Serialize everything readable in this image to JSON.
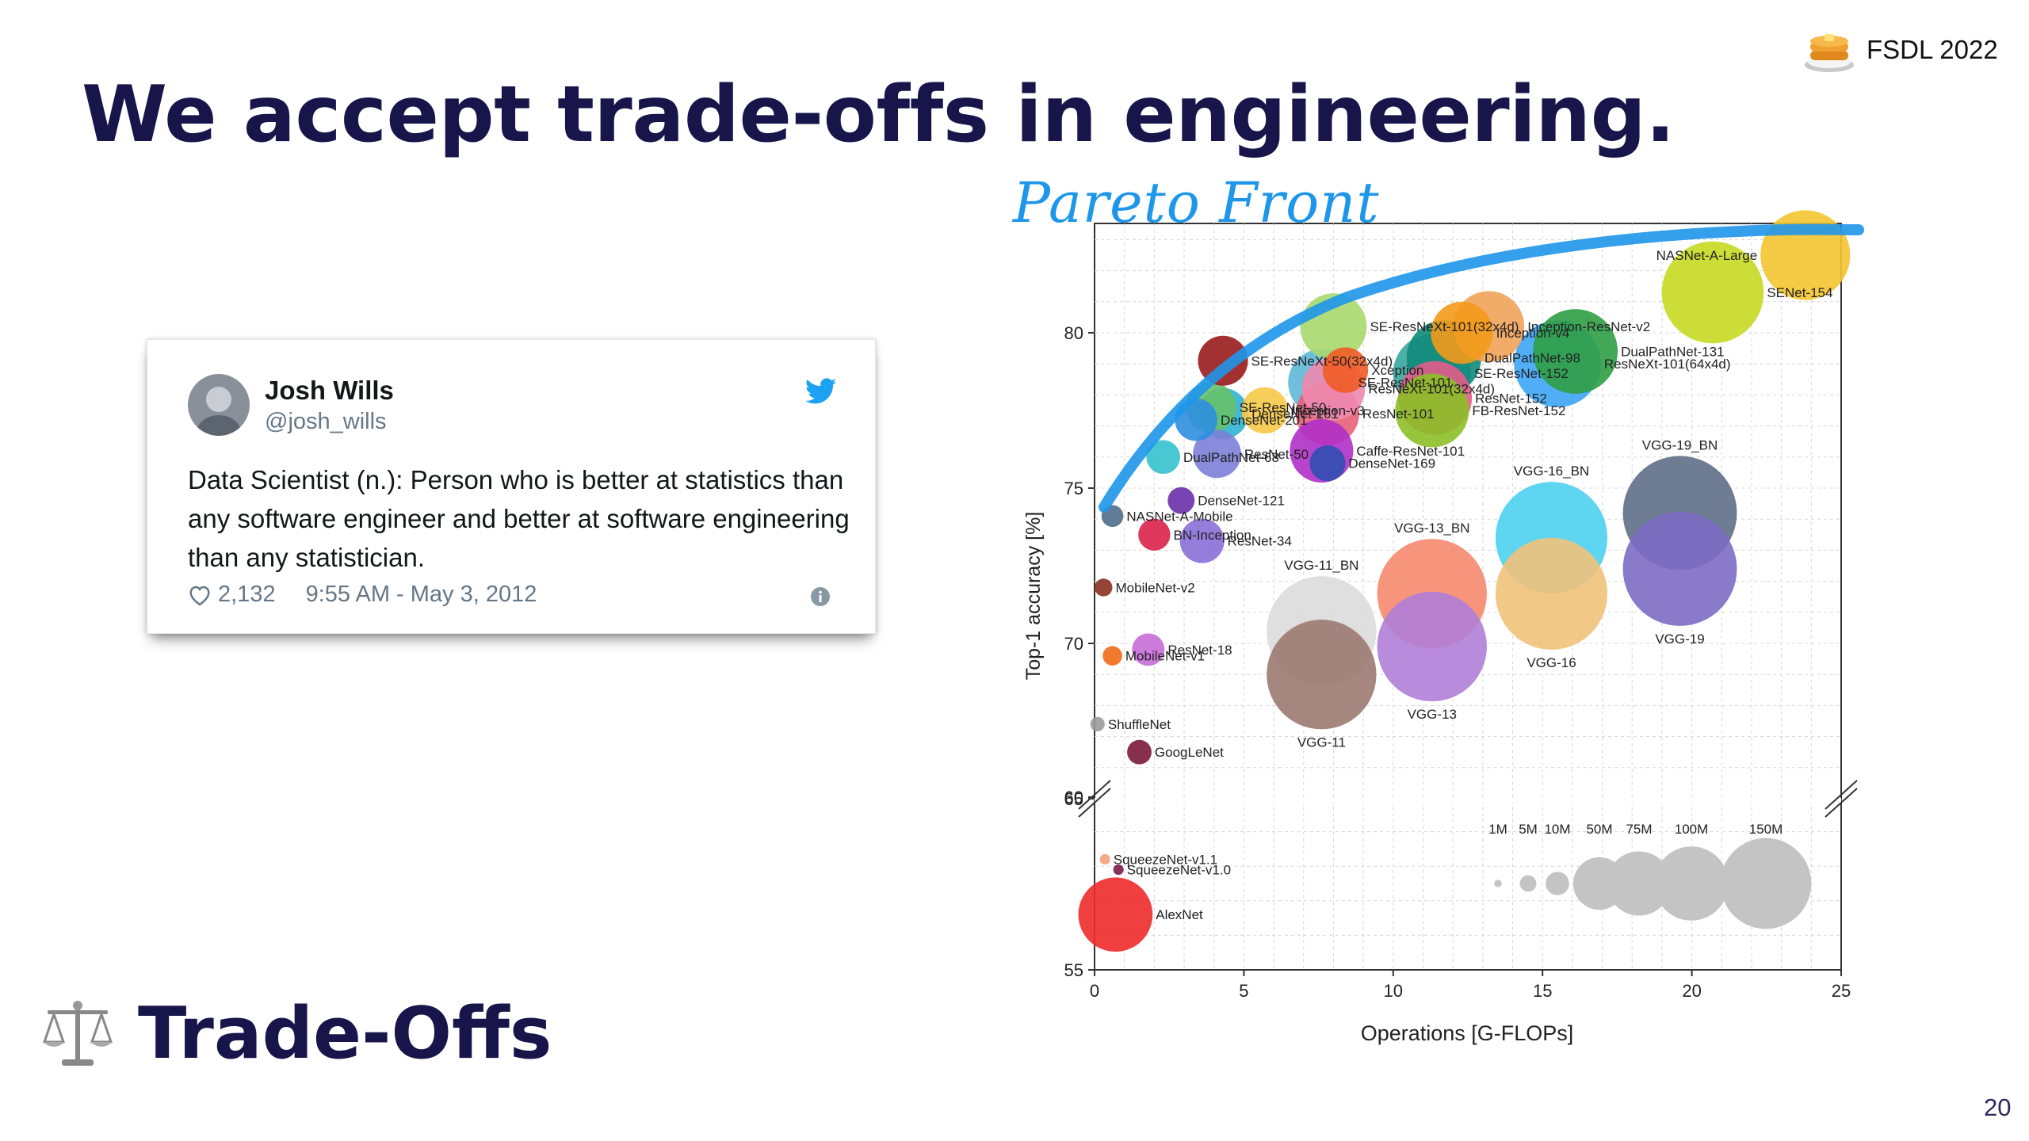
{
  "slide": {
    "title": "We accept trade-offs in engineering.",
    "brand": "FSDL 2022",
    "annotation": "Pareto Front",
    "footer": "Trade-Offs",
    "page_number": "20"
  },
  "tweet": {
    "name": "Josh Wills",
    "handle": "@josh_wills",
    "text": "Data Scientist (n.): Person who is better at statistics than any software engineer and better at software engineering than any statistician.",
    "likes": "2,132",
    "timestamp": "9:55 AM - May 3, 2012"
  },
  "colors": {
    "title": "#17154a",
    "pareto": "#1e96ea",
    "twitter": "#1da1f2"
  },
  "chart_data": {
    "type": "scatter",
    "xlabel": "Operations [G-FLOPs]",
    "ylabel": "Top-1 accuracy [%]",
    "xlim": [
      0,
      25
    ],
    "ylim": [
      55,
      83
    ],
    "x_ticks": [
      "0",
      "5",
      "10",
      "15",
      "20",
      "25"
    ],
    "y_ticks_upper": [
      "65",
      "70",
      "75",
      "80"
    ],
    "y_ticks_lower": [
      "55",
      "60"
    ],
    "axis_break": [
      60,
      65
    ],
    "grid": true,
    "size_legend": {
      "labels": [
        "1M",
        "5M",
        "10M",
        "50M",
        "75M",
        "100M",
        "150M"
      ],
      "params_m": [
        1,
        5,
        10,
        50,
        75,
        100,
        150
      ]
    },
    "points": [
      {
        "name": "NASNet-A-Large",
        "x": 23.8,
        "y": 82.5,
        "params_m": 88.9,
        "color": "#f4c430"
      },
      {
        "name": "SENet-154",
        "x": 20.7,
        "y": 81.3,
        "params_m": 115,
        "color": "#c7d922"
      },
      {
        "name": "Inception-ResNet-v2",
        "x": 13.2,
        "y": 80.2,
        "params_m": 55.8,
        "color": "#f1a35a"
      },
      {
        "name": "Inception-v4",
        "x": 12.3,
        "y": 80.0,
        "params_m": 42.7,
        "color": "#f39a1a"
      },
      {
        "name": "DualPathNet-131",
        "x": 16.1,
        "y": 79.4,
        "params_m": 79.3,
        "color": "#2f9e44"
      },
      {
        "name": "DualPathNet-98",
        "x": 11.7,
        "y": 79.2,
        "params_m": 61.6,
        "color": "#108a7a"
      },
      {
        "name": "SE-ResNeXt-101(32x4d)",
        "x": 8.0,
        "y": 80.2,
        "params_m": 49,
        "color": "#a9d86e"
      },
      {
        "name": "SE-ResNeXt-50(32x4d)",
        "x": 4.3,
        "y": 79.1,
        "params_m": 27.6,
        "color": "#9a1b1b"
      },
      {
        "name": "Xception",
        "x": 8.4,
        "y": 78.8,
        "params_m": 22.9,
        "color": "#ef5b25"
      },
      {
        "name": "SE-ResNet-152",
        "x": 11.3,
        "y": 78.7,
        "params_m": 66.8,
        "color": "#3aa6a0"
      },
      {
        "name": "ResNeXt-101(64x4d)",
        "x": 15.5,
        "y": 79.0,
        "params_m": 83.5,
        "color": "#3da5f5"
      },
      {
        "name": "SE-ResNet-101",
        "x": 7.6,
        "y": 78.4,
        "params_m": 49.3,
        "color": "#5fb8d8"
      },
      {
        "name": "ResNeXt-101(32x4d)",
        "x": 8.0,
        "y": 78.2,
        "params_m": 44.2,
        "color": "#ef8ab0"
      },
      {
        "name": "ResNet-152",
        "x": 11.4,
        "y": 77.9,
        "params_m": 60.2,
        "color": "#e35c8a"
      },
      {
        "name": "Inception-v3",
        "x": 5.7,
        "y": 77.5,
        "params_m": 23.8,
        "color": "#f7c948"
      },
      {
        "name": "SE-ResNet-50",
        "x": 3.9,
        "y": 77.6,
        "params_m": 28.1,
        "color": "#66c26a"
      },
      {
        "name": "ResNet-101",
        "x": 7.8,
        "y": 77.4,
        "params_m": 44.5,
        "color": "#e6607a"
      },
      {
        "name": "FB-ResNet-152",
        "x": 11.3,
        "y": 77.5,
        "params_m": 60.2,
        "color": "#8cbf26"
      },
      {
        "name": "DenseNet-201",
        "x": 3.4,
        "y": 77.2,
        "params_m": 20,
        "color": "#2f8fe0"
      },
      {
        "name": "DenseNet-161",
        "x": 4.3,
        "y": 77.4,
        "params_m": 28.7,
        "color": "#2fb3d2"
      },
      {
        "name": "Caffe-ResNet-101",
        "x": 7.6,
        "y": 76.2,
        "params_m": 44.5,
        "color": "#b02fc8"
      },
      {
        "name": "ResNet-50",
        "x": 4.1,
        "y": 76.1,
        "params_m": 25.6,
        "color": "#7c7fd8"
      },
      {
        "name": "DenseNet-169",
        "x": 7.8,
        "y": 75.8,
        "params_m": 14.1,
        "color": "#2f4fb0"
      },
      {
        "name": "DualPathNet-68",
        "x": 2.3,
        "y": 76.0,
        "params_m": 12.6,
        "color": "#35c2cf"
      },
      {
        "name": "DenseNet-121",
        "x": 2.9,
        "y": 74.6,
        "params_m": 8,
        "color": "#6a2fa8"
      },
      {
        "name": "NASNet-A-Mobile",
        "x": 0.6,
        "y": 74.1,
        "params_m": 5.3,
        "color": "#4f6f8a"
      },
      {
        "name": "BN-Inception",
        "x": 2.0,
        "y": 73.5,
        "params_m": 11.3,
        "color": "#d9224a"
      },
      {
        "name": "ResNet-34",
        "x": 3.6,
        "y": 73.3,
        "params_m": 21.8,
        "color": "#8a6fd8"
      },
      {
        "name": "MobileNet-v2",
        "x": 0.3,
        "y": 71.8,
        "params_m": 3.5,
        "color": "#8a3020"
      },
      {
        "name": "VGG-19_BN",
        "x": 19.6,
        "y": 74.2,
        "params_m": 143.7,
        "color": "#5e6f87"
      },
      {
        "name": "VGG-19",
        "x": 19.6,
        "y": 72.4,
        "params_m": 143.7,
        "color": "#7c6bc4"
      },
      {
        "name": "VGG-16_BN",
        "x": 15.3,
        "y": 73.4,
        "params_m": 138.4,
        "color": "#4dd0f0"
      },
      {
        "name": "VGG-16",
        "x": 15.3,
        "y": 71.6,
        "params_m": 138.4,
        "color": "#f1c27a"
      },
      {
        "name": "VGG-13_BN",
        "x": 11.3,
        "y": 71.6,
        "params_m": 133,
        "color": "#f58a6e"
      },
      {
        "name": "VGG-13",
        "x": 11.3,
        "y": 69.9,
        "params_m": 133,
        "color": "#b07ed8"
      },
      {
        "name": "VGG-11_BN",
        "x": 7.6,
        "y": 70.4,
        "params_m": 132.9,
        "color": "#dcdcdc"
      },
      {
        "name": "VGG-11",
        "x": 7.6,
        "y": 69.0,
        "params_m": 132.9,
        "color": "#9c7a72"
      },
      {
        "name": "ResNet-18",
        "x": 1.8,
        "y": 69.8,
        "params_m": 11.7,
        "color": "#c76bd8"
      },
      {
        "name": "MobileNet-v1",
        "x": 0.6,
        "y": 69.6,
        "params_m": 4.2,
        "color": "#f06a1a"
      },
      {
        "name": "ShuffleNet",
        "x": 0.1,
        "y": 67.4,
        "params_m": 2.3,
        "color": "#9a9a9a"
      },
      {
        "name": "GoogLeNet",
        "x": 1.5,
        "y": 66.5,
        "params_m": 6.6,
        "color": "#7a1a3a"
      },
      {
        "name": "SqueezeNet-v1.1",
        "x": 0.35,
        "y": 58.2,
        "params_m": 1.2,
        "color": "#f4a07a"
      },
      {
        "name": "SqueezeNet-v1.0",
        "x": 0.8,
        "y": 57.9,
        "params_m": 1.2,
        "color": "#7a1a4a"
      },
      {
        "name": "AlexNet",
        "x": 0.7,
        "y": 56.6,
        "params_m": 61,
        "color": "#ee2a2a"
      }
    ]
  }
}
